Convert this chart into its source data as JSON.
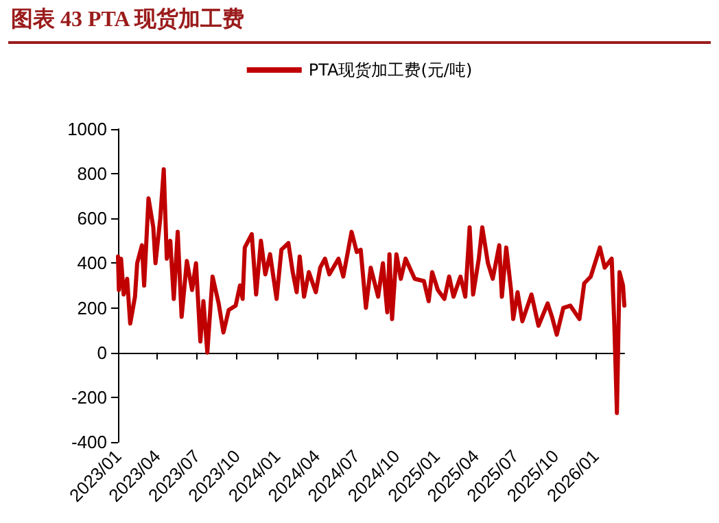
{
  "chart_data": {
    "type": "line",
    "title": "图表 43 PTA 现货加工费",
    "x": [
      "2023-01-01",
      "2023-01-03",
      "2023-01-08",
      "2023-01-14",
      "2023-01-22",
      "2023-01-29",
      "2023-02-09",
      "2023-02-14",
      "2023-02-25",
      "2023-03-02",
      "2023-03-12",
      "2023-03-23",
      "2023-03-28",
      "2023-04-08",
      "2023-04-16",
      "2023-04-23",
      "2023-05-01",
      "2023-05-09",
      "2023-05-18",
      "2023-05-27",
      "2023-06-08",
      "2023-06-20",
      "2023-06-29",
      "2023-07-09",
      "2023-07-16",
      "2023-07-25",
      "2023-08-06",
      "2023-08-20",
      "2023-08-31",
      "2023-09-12",
      "2023-09-28",
      "2023-10-08",
      "2023-10-14",
      "2023-10-19",
      "2023-11-04",
      "2023-11-14",
      "2023-11-25",
      "2023-12-05",
      "2023-12-16",
      "2023-12-31",
      "2024-01-11",
      "2024-01-27",
      "2024-02-06",
      "2024-02-15",
      "2024-02-22",
      "2024-03-03",
      "2024-03-14",
      "2024-03-30",
      "2024-04-09",
      "2024-04-20",
      "2024-04-30",
      "2024-05-21",
      "2024-06-01",
      "2024-06-20",
      "2024-07-02",
      "2024-07-11",
      "2024-07-23",
      "2024-08-03",
      "2024-08-20",
      "2024-08-31",
      "2024-09-10",
      "2024-09-15",
      "2024-09-21",
      "2024-10-01",
      "2024-10-11",
      "2024-10-22",
      "2024-11-12",
      "2024-12-03",
      "2024-12-14",
      "2024-12-22",
      "2025-01-04",
      "2025-01-19",
      "2025-01-30",
      "2025-02-09",
      "2025-02-25",
      "2025-03-08",
      "2025-03-18",
      "2025-03-26",
      "2025-04-08",
      "2025-04-16",
      "2025-04-29",
      "2025-05-10",
      "2025-05-25",
      "2025-05-31",
      "2025-06-10",
      "2025-06-21",
      "2025-06-26",
      "2025-07-06",
      "2025-07-17",
      "2025-08-07",
      "2025-08-23",
      "2025-09-13",
      "2025-09-23",
      "2025-10-04",
      "2025-10-19",
      "2025-11-04",
      "2025-11-25",
      "2025-12-06",
      "2025-12-21",
      "2026-01-11",
      "2026-01-22",
      "2026-02-07",
      "2026-02-13",
      "2026-02-19",
      "2026-02-25",
      "2026-03-05",
      "2026-03-08"
    ],
    "series": [
      {
        "name": "PTA现货加工费(元/吨)",
        "color": "#c00000",
        "values": [
          430,
          280,
          420,
          260,
          330,
          130,
          250,
          400,
          480,
          300,
          690,
          560,
          400,
          600,
          820,
          420,
          500,
          240,
          540,
          160,
          410,
          280,
          400,
          50,
          230,
          0,
          340,
          220,
          90,
          190,
          210,
          300,
          240,
          470,
          530,
          260,
          500,
          350,
          440,
          240,
          460,
          490,
          360,
          270,
          430,
          250,
          360,
          270,
          380,
          420,
          350,
          420,
          340,
          540,
          450,
          460,
          200,
          380,
          250,
          400,
          180,
          440,
          150,
          440,
          330,
          420,
          330,
          320,
          230,
          360,
          280,
          240,
          340,
          250,
          340,
          250,
          560,
          260,
          420,
          560,
          400,
          330,
          480,
          250,
          470,
          280,
          150,
          270,
          140,
          260,
          120,
          220,
          160,
          80,
          200,
          210,
          150,
          310,
          340,
          470,
          380,
          420,
          130,
          -270,
          360,
          300,
          210
        ]
      }
    ],
    "xlim": [
      "2023-01-01",
      "2026-03-08"
    ],
    "xticks": [
      {
        "value": "2023-01-01",
        "label": "2023/01"
      },
      {
        "value": "2023-04-01",
        "label": "2023/04"
      },
      {
        "value": "2023-07-01",
        "label": "2023/07"
      },
      {
        "value": "2023-10-01",
        "label": "2023/10"
      },
      {
        "value": "2024-01-01",
        "label": "2024/01"
      },
      {
        "value": "2024-04-01",
        "label": "2024/04"
      },
      {
        "value": "2024-07-01",
        "label": "2024/07"
      },
      {
        "value": "2024-10-01",
        "label": "2024/10"
      },
      {
        "value": "2025-01-01",
        "label": "2025/01"
      },
      {
        "value": "2025-04-01",
        "label": "2025/04"
      },
      {
        "value": "2025-07-01",
        "label": "2025/07"
      },
      {
        "value": "2025-10-01",
        "label": "2025/10"
      },
      {
        "value": "2026-01-01",
        "label": "2026/01"
      }
    ],
    "ylim": [
      -400,
      1000
    ],
    "yticks": [
      -400,
      -200,
      0,
      200,
      400,
      600,
      800,
      1000
    ],
    "legend": "top",
    "marker": "none",
    "line_style": "solid"
  }
}
